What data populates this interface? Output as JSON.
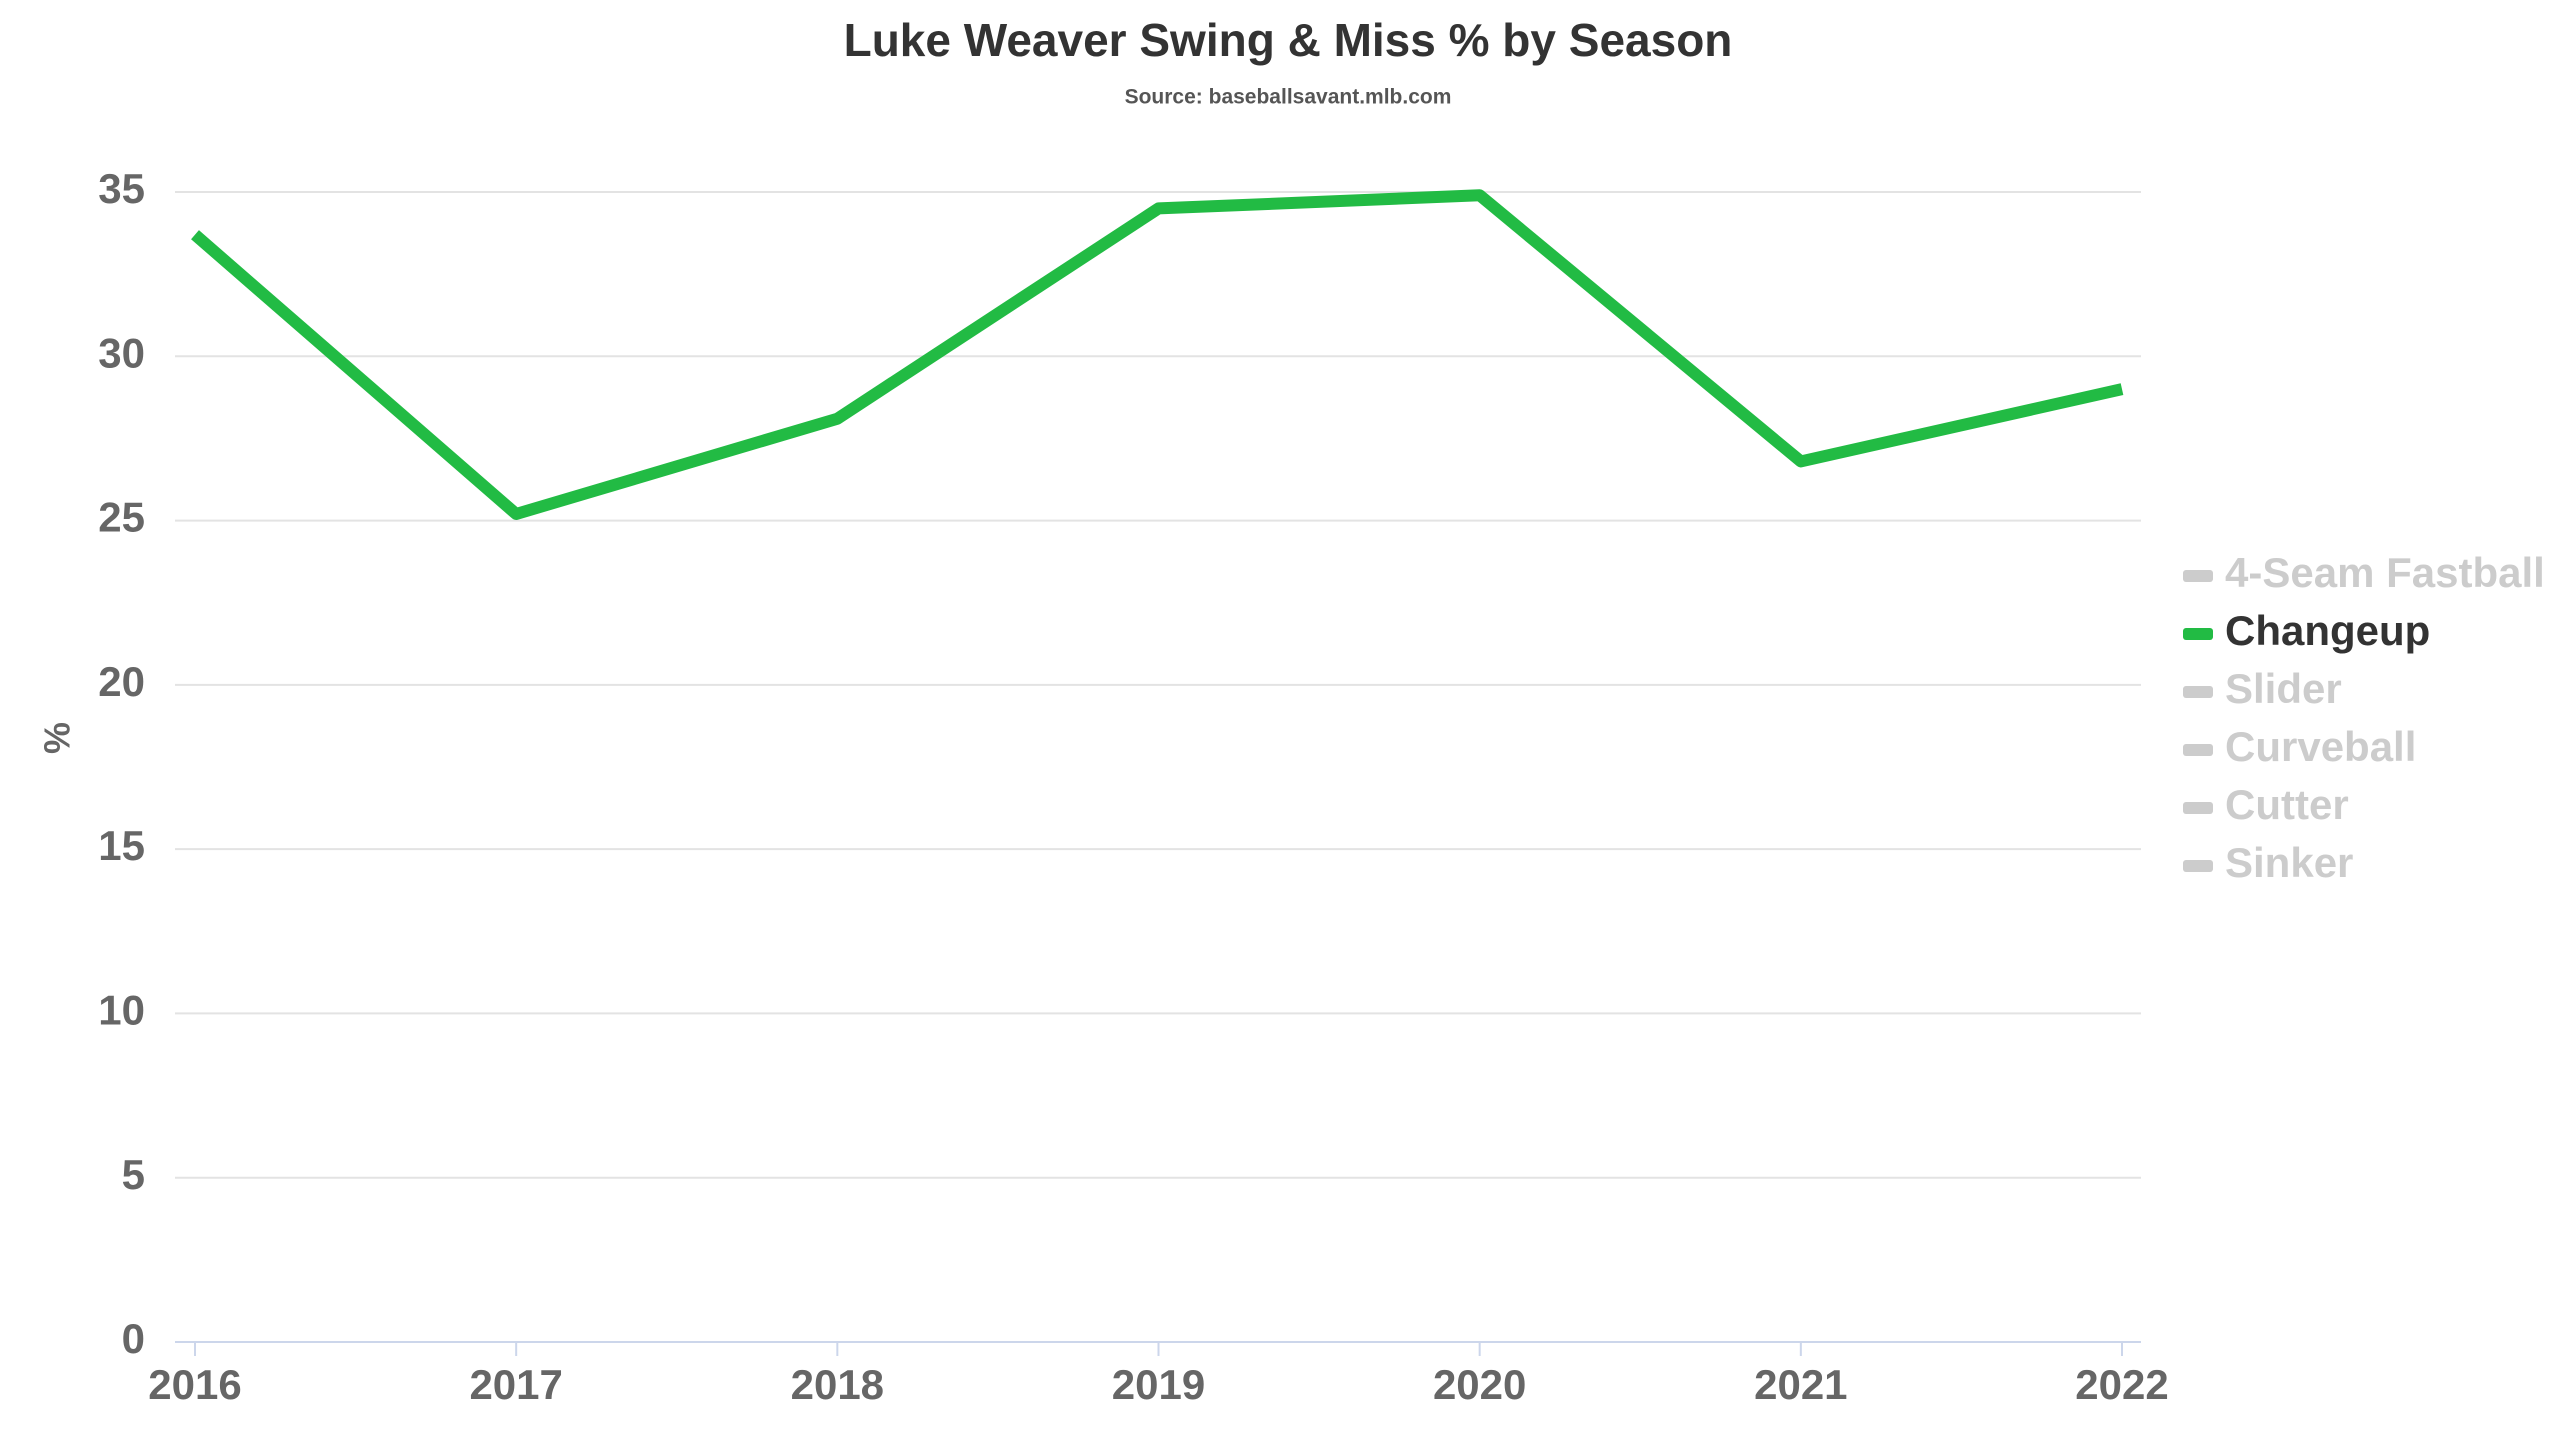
{
  "chart_data": {
    "type": "line",
    "title": "Luke Weaver Swing & Miss % by Season",
    "subtitle": "Source: baseballsavant.mlb.com",
    "y_label": "%",
    "categories": [
      "2016",
      "2017",
      "2018",
      "2019",
      "2020",
      "2021",
      "2022"
    ],
    "series": [
      {
        "name": "Changeup",
        "color": "#22bb44",
        "values": [
          33.7,
          25.2,
          28.1,
          34.5,
          34.9,
          26.8,
          29.0
        ]
      }
    ],
    "hidden_series": [
      "4-Seam Fastball",
      "Slider",
      "Curveball",
      "Cutter",
      "Sinker"
    ],
    "legend_order": [
      "4-Seam Fastball",
      "Changeup",
      "Slider",
      "Curveball",
      "Cutter",
      "Sinker"
    ],
    "ylim": [
      0,
      35
    ],
    "yticks": [
      0,
      5,
      10,
      15,
      20,
      25,
      30,
      35
    ],
    "grid": true,
    "legend": "right"
  }
}
